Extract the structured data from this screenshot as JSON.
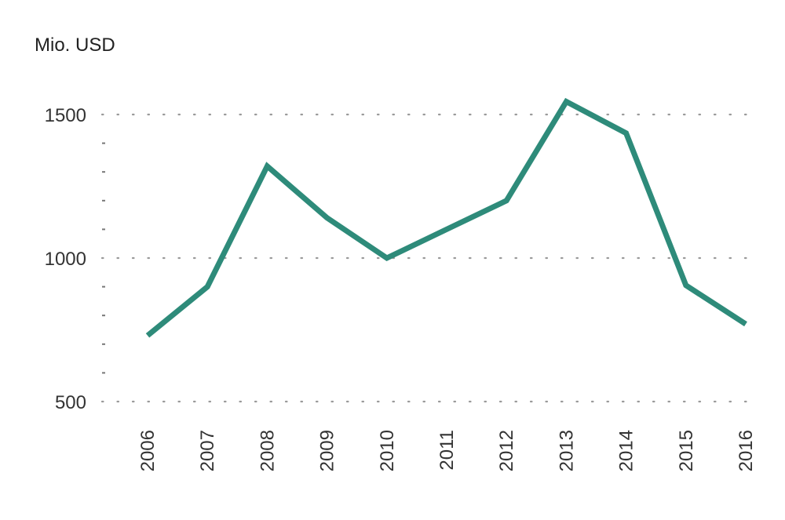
{
  "chart_data": {
    "type": "line",
    "y_unit_label": "Mio. USD",
    "categories": [
      "2006",
      "2007",
      "2008",
      "2009",
      "2010",
      "2011",
      "2012",
      "2013",
      "2014",
      "2015",
      "2016"
    ],
    "series": [
      {
        "values": [
          730,
          900,
          1320,
          1140,
          1000,
          1100,
          1200,
          1545,
          1435,
          905,
          770
        ]
      }
    ],
    "ylim": [
      500,
      1500
    ],
    "yticks": [
      500,
      1000,
      1500
    ],
    "y_minor_step": 100,
    "grid": "dotted horizontal",
    "line_color": "#2e8b7a"
  }
}
